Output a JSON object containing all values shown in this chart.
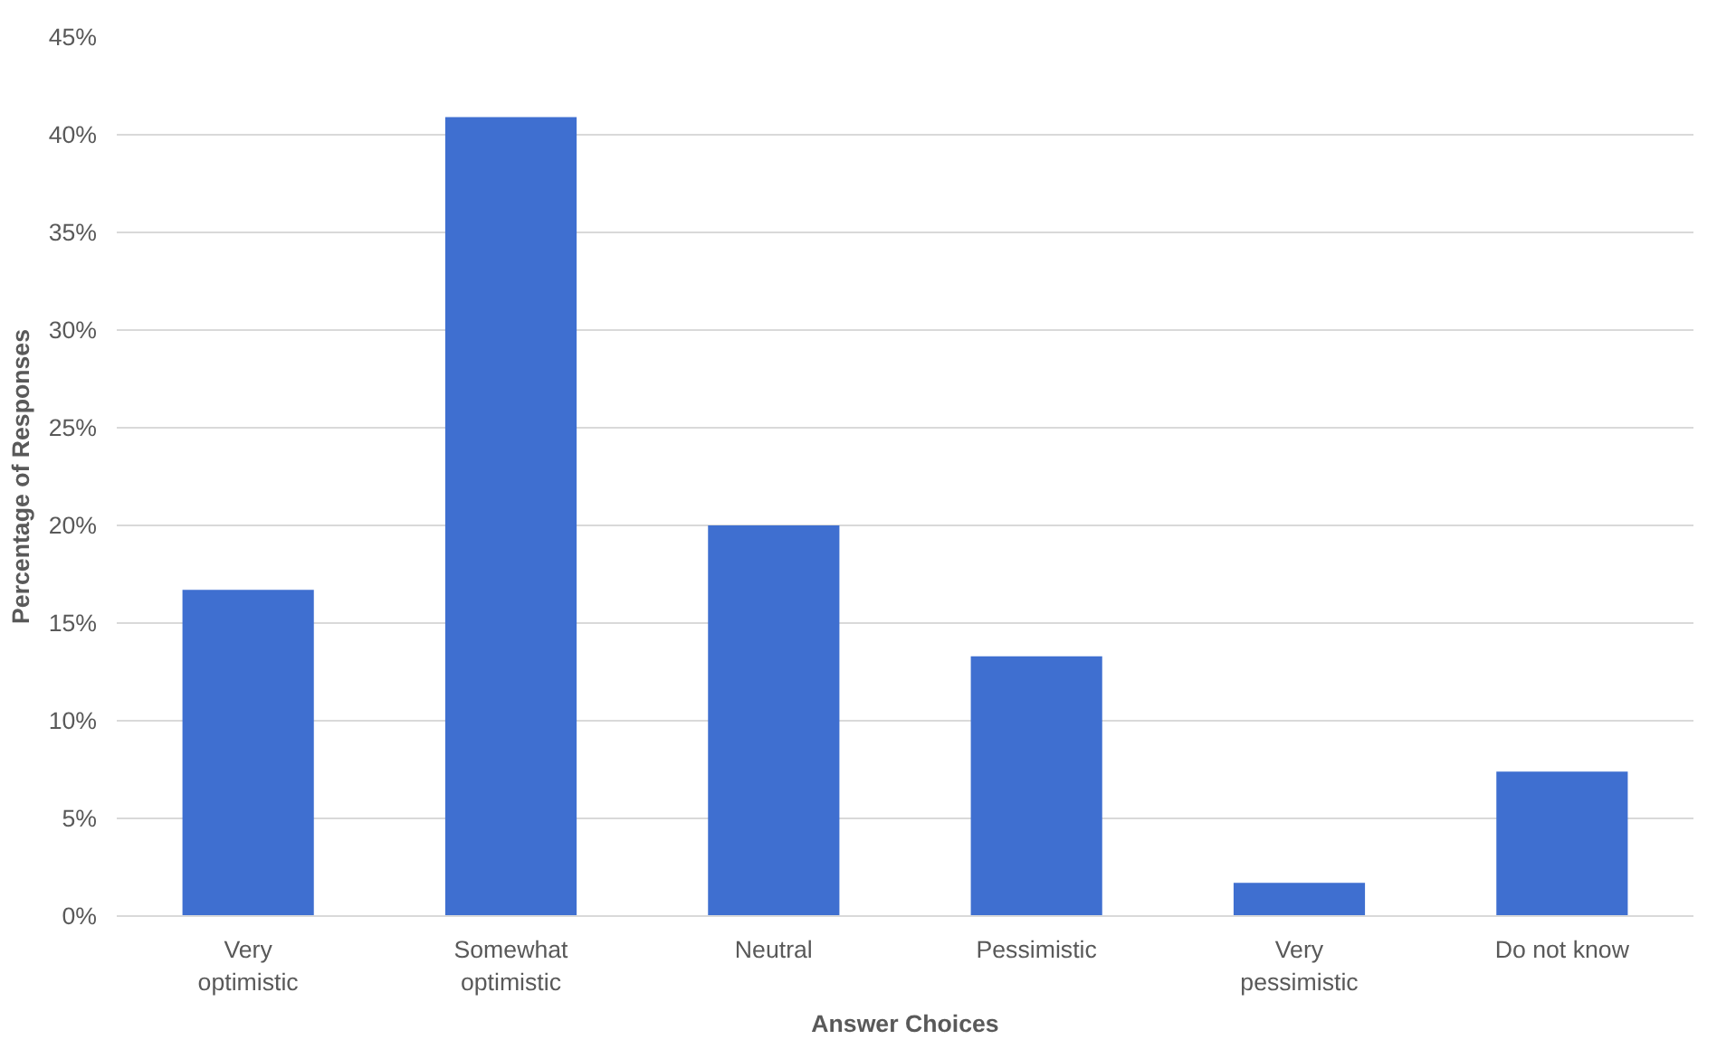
{
  "chart_data": {
    "type": "bar",
    "xlabel": "Answer Choices",
    "ylabel": "Percentage of Responses",
    "categories": [
      "Very optimistic",
      "Somewhat optimistic",
      "Neutral",
      "Pessimistic",
      "Very pessimistic",
      "Do not know"
    ],
    "values": [
      16.7,
      40.9,
      20.0,
      13.3,
      1.7,
      7.4
    ],
    "color": "#3f6fd0",
    "ylim": [
      0,
      45
    ],
    "yticks": [
      {
        "value": 0,
        "label": "0%"
      },
      {
        "value": 5,
        "label": "5%"
      },
      {
        "value": 10,
        "label": "10%"
      },
      {
        "value": 15,
        "label": "15%"
      },
      {
        "value": 20,
        "label": "20%"
      },
      {
        "value": 25,
        "label": "25%"
      },
      {
        "value": 30,
        "label": "30%"
      },
      {
        "value": 35,
        "label": "35%"
      },
      {
        "value": 40,
        "label": "40%"
      },
      {
        "value": 45,
        "label": "45%"
      }
    ],
    "grid": "y"
  }
}
